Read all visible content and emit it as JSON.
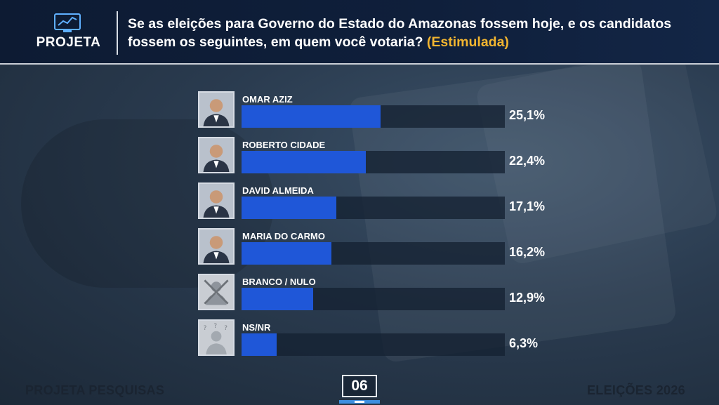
{
  "header": {
    "logo_text": "PROJETA",
    "question": "Se as eleições para Governo do Estado do Amazonas fossem hoje, e os candidatos fossem os seguintes, em quem você votaria?",
    "question_tag": "(Estimulada)"
  },
  "colors": {
    "bar": "#1f57d8",
    "track": "#14212f",
    "accent": "#f2b530",
    "header_bg": "#0d1b33"
  },
  "chart_data": {
    "type": "bar",
    "orientation": "horizontal",
    "categories": [
      "OMAR AZIZ",
      "ROBERTO CIDADE",
      "DAVID ALMEIDA",
      "MARIA DO CARMO",
      "BRANCO / NULO",
      "NS/NR"
    ],
    "values": [
      25.1,
      22.4,
      17.1,
      16.2,
      12.9,
      6.3
    ],
    "value_labels": [
      "25,1%",
      "22,4%",
      "17,1%",
      "16,2%",
      "12,9%",
      "6,3%"
    ],
    "photo_icons": [
      "candidate-photo",
      "candidate-photo",
      "candidate-photo",
      "candidate-photo",
      "crossed-ballot-icon",
      "unknown-person-icon"
    ],
    "xlim": [
      0,
      47.5
    ],
    "grid": false
  },
  "footer": {
    "left": "PROJETA PESQUISAS",
    "page": "06",
    "right": "ELEIÇÕES 2026"
  }
}
